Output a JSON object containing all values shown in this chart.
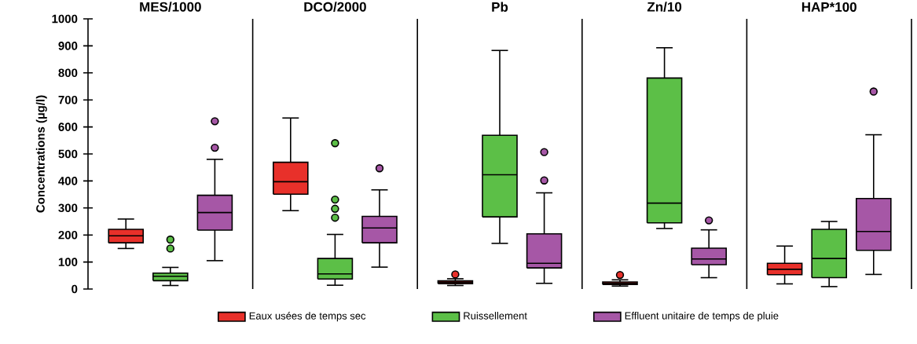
{
  "chart_data": {
    "type": "box",
    "ylabel": "Concentrations  (µg/l)",
    "categories": [
      "MES/1000",
      "DCO/2000",
      "Pb",
      "Zn/10",
      "HAP*100"
    ],
    "ylim": [
      0,
      1000
    ],
    "yticks": [
      0,
      100,
      200,
      300,
      400,
      500,
      600,
      700,
      800,
      900,
      1000
    ],
    "grid": false,
    "legend": "bottom",
    "series": [
      {
        "name": "Eaux usées de temps sec",
        "color": "#e8302a",
        "boxes": [
          {
            "low": 150,
            "q1": 171,
            "median": 197,
            "q3": 221,
            "high": 259
          },
          {
            "low": 290,
            "q1": 351,
            "median": 397,
            "q3": 469,
            "high": 633
          },
          {
            "low": 13,
            "q1": 20,
            "median": 25,
            "q3": 30,
            "high": 38,
            "outliers": [
              54
            ]
          },
          {
            "low": 11,
            "q1": 17,
            "median": 21,
            "q3": 26,
            "high": 34,
            "outliers": [
              52
            ]
          },
          {
            "low": 19,
            "q1": 53,
            "median": 73,
            "q3": 95,
            "high": 159
          }
        ]
      },
      {
        "name": "Ruissellement",
        "color": "#5cbf47",
        "boxes": [
          {
            "low": 13,
            "q1": 31,
            "median": 47,
            "q3": 59,
            "high": 80,
            "outliers": [
              183,
              150
            ]
          },
          {
            "low": 14,
            "q1": 37,
            "median": 56,
            "q3": 113,
            "high": 202,
            "outliers": [
              540,
              331,
              297,
              264
            ]
          },
          {
            "low": 169,
            "q1": 267,
            "median": 423,
            "q3": 569,
            "high": 883
          },
          {
            "low": 224,
            "q1": 245,
            "median": 318,
            "q3": 781,
            "high": 893
          },
          {
            "low": 9,
            "q1": 42,
            "median": 113,
            "q3": 221,
            "high": 250
          }
        ]
      },
      {
        "name": "Effluent unitaire de temps de pluie",
        "color": "#a657a6",
        "boxes": [
          {
            "low": 105,
            "q1": 218,
            "median": 283,
            "q3": 347,
            "high": 480,
            "outliers": [
              621,
              523
            ]
          },
          {
            "low": 81,
            "q1": 171,
            "median": 226,
            "q3": 269,
            "high": 367,
            "outliers": [
              447
            ]
          },
          {
            "low": 21,
            "q1": 78,
            "median": 95,
            "q3": 204,
            "high": 356,
            "outliers": [
              507,
              402
            ]
          },
          {
            "low": 42,
            "q1": 90,
            "median": 111,
            "q3": 151,
            "high": 219,
            "outliers": [
              254
            ]
          },
          {
            "low": 54,
            "q1": 143,
            "median": 213,
            "q3": 335,
            "high": 571,
            "outliers": [
              731
            ]
          }
        ]
      }
    ]
  }
}
